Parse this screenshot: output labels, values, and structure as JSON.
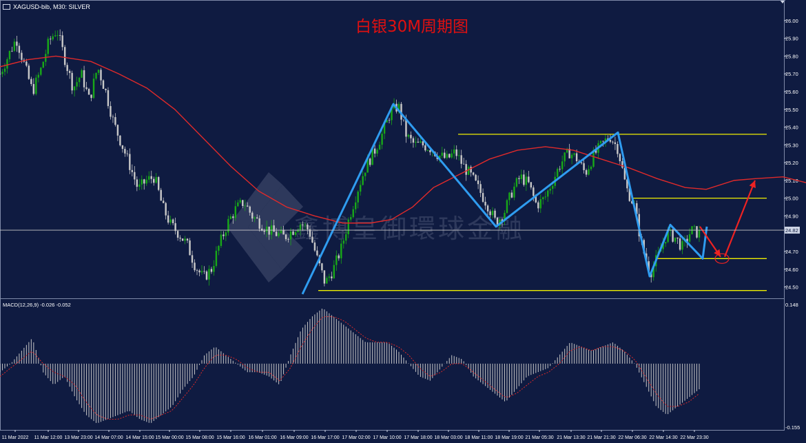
{
  "header": {
    "symbol": "XAGUSD-bib, M30:  SILVER"
  },
  "title": "白银30M周期图",
  "watermark": "鑫博皇御環球金融",
  "colors": {
    "background": "#0f1b41",
    "grid": "#3a4a78",
    "candle_up": "#18a818",
    "candle_down": "#c8c8c8",
    "ma": "#e02a2a",
    "zigzag": "#2f9cf0",
    "level": "#f0f000",
    "arrow": "#ee2222",
    "title": "#e01010",
    "axis_text": "#ffffff",
    "current_price_line": "#c8c8c8",
    "macd_signal": "#dd2a2a"
  },
  "chart_data": [
    {
      "type": "candlestick",
      "title": "白银30M周期图",
      "y_range": [
        24.44,
        26.05
      ],
      "y_ticks": [
        "26.00",
        "25.90",
        "25.80",
        "25.70",
        "25.60",
        "25.50",
        "25.40",
        "25.30",
        "25.20",
        "25.10",
        "25.00",
        "24.90",
        "24.70",
        "24.60",
        "24.50"
      ],
      "current_price": "24.82",
      "x_ticks": [
        "11 Mar 2022",
        "11 Mar 12:00",
        "13 Mar 23:00",
        "14 Mar 07:00",
        "14 Mar 15:00",
        "15 Mar 00:00",
        "15 Mar 08:00",
        "15 Mar 16:00",
        "16 Mar 01:00",
        "16 Mar 09:00",
        "16 Mar 17:00",
        "17 Mar 02:00",
        "17 Mar 10:00",
        "17 Mar 18:00",
        "18 Mar 03:00",
        "18 Mar 11:00",
        "18 Mar 19:00",
        "21 Mar 05:30",
        "21 Mar 13:30",
        "21 Mar 21:30",
        "22 Mar 06:30",
        "22 Mar 14:30",
        "22 Mar 23:30"
      ],
      "price_path": [
        25.7,
        25.8,
        25.9,
        25.75,
        25.6,
        25.72,
        25.88,
        25.95,
        25.78,
        25.62,
        25.7,
        25.55,
        25.74,
        25.6,
        25.42,
        25.3,
        25.18,
        25.05,
        25.1,
        25.12,
        24.95,
        24.85,
        24.8,
        24.74,
        24.62,
        24.55,
        24.6,
        24.74,
        24.86,
        24.94,
        24.98,
        24.9,
        24.86,
        24.82,
        24.8,
        24.78,
        24.82,
        24.86,
        24.82,
        24.66,
        24.52,
        24.6,
        24.72,
        24.9,
        25.05,
        25.18,
        25.26,
        25.36,
        25.48,
        25.52,
        25.35,
        25.3,
        25.3,
        25.28,
        25.24,
        25.22,
        25.26,
        25.18,
        25.12,
        25.04,
        24.96,
        24.86,
        24.92,
        25.04,
        25.12,
        25.08,
        24.96,
        25.0,
        25.1,
        25.2,
        25.26,
        25.22,
        25.14,
        25.24,
        25.3,
        25.35,
        25.28,
        25.06,
        24.96,
        24.72,
        24.58,
        24.68,
        24.8,
        24.78,
        24.72,
        24.82,
        24.8
      ],
      "moving_average": [
        [
          0,
          25.74
        ],
        [
          0.04,
          25.78
        ],
        [
          0.08,
          25.8
        ],
        [
          0.13,
          25.77
        ],
        [
          0.17,
          25.7
        ],
        [
          0.21,
          25.62
        ],
        [
          0.25,
          25.5
        ],
        [
          0.29,
          25.34
        ],
        [
          0.33,
          25.18
        ],
        [
          0.37,
          25.04
        ],
        [
          0.41,
          24.95
        ],
        [
          0.45,
          24.9
        ],
        [
          0.49,
          24.86
        ],
        [
          0.53,
          24.86
        ],
        [
          0.56,
          24.88
        ],
        [
          0.59,
          24.95
        ],
        [
          0.62,
          25.06
        ],
        [
          0.66,
          25.14
        ],
        [
          0.7,
          25.22
        ],
        [
          0.74,
          25.27
        ],
        [
          0.78,
          25.29
        ],
        [
          0.82,
          25.27
        ],
        [
          0.86,
          25.22
        ],
        [
          0.9,
          25.17
        ],
        [
          0.94,
          25.11
        ],
        [
          0.98,
          25.06
        ],
        [
          1.01,
          25.05
        ],
        [
          1.05,
          25.1
        ],
        [
          1.08,
          25.11
        ],
        [
          1.12,
          25.12
        ],
        [
          1.16,
          25.08
        ],
        [
          1.2,
          25.03
        ],
        [
          1.24,
          25.0
        ]
      ],
      "zigzag": [
        [
          "16 Mar 09:00",
          24.46
        ],
        [
          "17 Mar 10:00",
          25.53
        ],
        [
          "18 Mar 19:00",
          24.84
        ],
        [
          "22 Mar 06:30",
          25.37
        ],
        [
          "22 Mar 14:30",
          24.56
        ],
        [
          "22 Mar 14:30",
          24.85
        ],
        [
          "22 Mar 23:30",
          24.66
        ],
        [
          "22 Mar 23:30",
          24.84
        ]
      ],
      "levels": [
        25.36,
        25.0,
        24.66,
        24.48
      ],
      "projection": [
        [
          24.84,
          24.67
        ],
        [
          24.67,
          25.1
        ]
      ]
    },
    {
      "type": "bar",
      "title": "MACD(12,26,9) -0.026 -0.052",
      "y_range": [
        -0.155,
        0.148
      ],
      "y_ticks": [
        "0.148",
        "-0.155"
      ],
      "histogram_path": [
        -0.02,
        0.0,
        0.03,
        0.06,
        -0.02,
        -0.05,
        -0.03,
        -0.08,
        -0.12,
        -0.14,
        -0.13,
        -0.12,
        -0.11,
        -0.13,
        -0.14,
        -0.12,
        -0.1,
        -0.06,
        -0.03,
        0.02,
        0.04,
        0.02,
        0.0,
        -0.02,
        -0.02,
        -0.03,
        -0.05,
        0.02,
        0.08,
        0.11,
        0.13,
        0.11,
        0.09,
        0.07,
        0.05,
        0.05,
        0.05,
        0.03,
        0.0,
        -0.03,
        -0.04,
        -0.01,
        0.02,
        0.01,
        -0.03,
        -0.05,
        -0.07,
        -0.09,
        -0.06,
        -0.03,
        -0.02,
        -0.01,
        0.02,
        0.05,
        0.04,
        0.03,
        0.04,
        0.05,
        0.03,
        0.0,
        -0.05,
        -0.1,
        -0.12,
        -0.1,
        -0.08,
        -0.06
      ],
      "signal_path": [
        -0.03,
        -0.01,
        0.01,
        0.03,
        0.0,
        -0.02,
        -0.03,
        -0.05,
        -0.09,
        -0.12,
        -0.13,
        -0.13,
        -0.12,
        -0.12,
        -0.13,
        -0.12,
        -0.11,
        -0.08,
        -0.05,
        -0.01,
        0.02,
        0.02,
        0.01,
        -0.01,
        -0.02,
        -0.02,
        -0.04,
        -0.01,
        0.04,
        0.08,
        0.11,
        0.11,
        0.1,
        0.08,
        0.06,
        0.05,
        0.05,
        0.04,
        0.02,
        -0.01,
        -0.03,
        -0.02,
        0.0,
        0.0,
        -0.02,
        -0.04,
        -0.06,
        -0.08,
        -0.07,
        -0.05,
        -0.03,
        -0.02,
        0.0,
        0.03,
        0.04,
        0.03,
        0.04,
        0.04,
        0.03,
        0.01,
        -0.03,
        -0.07,
        -0.1,
        -0.1,
        -0.09,
        -0.07
      ]
    }
  ]
}
